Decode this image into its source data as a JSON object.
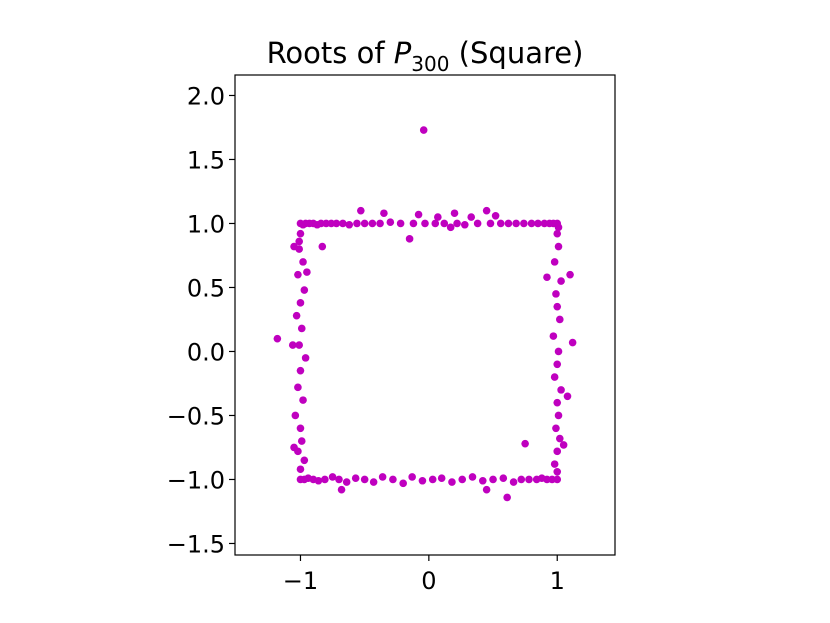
{
  "chart_data": {
    "type": "scatter",
    "title": [
      "Roots of ",
      "P",
      "300",
      " (Square)"
    ],
    "color": "#bf00bf",
    "xlim": [
      -1.51,
      1.45
    ],
    "ylim": [
      -1.59,
      2.16
    ],
    "xticks": [
      {
        "value": -1,
        "label": "−1"
      },
      0,
      1
    ],
    "yticks": [
      {
        "value": -1.5,
        "label": "−1.5"
      },
      {
        "value": -1.0,
        "label": "−1.0"
      },
      {
        "value": -0.5,
        "label": "−0.5"
      },
      {
        "value": 0.0,
        "label": "0.0"
      },
      {
        "value": 0.5,
        "label": "0.5"
      },
      {
        "value": 1.0,
        "label": "1.0"
      },
      {
        "value": 1.5,
        "label": "1.5"
      },
      {
        "value": 2.0,
        "label": "2.0"
      }
    ],
    "x": [
      -1.0,
      -0.98,
      -0.96,
      -0.93,
      -0.9,
      -0.87,
      -0.84,
      -0.8,
      -0.76,
      -0.72,
      -0.67,
      -0.62,
      -0.56,
      -0.5,
      -0.44,
      -0.38,
      -0.3,
      -0.22,
      -0.12,
      -0.03,
      0.05,
      0.12,
      0.22,
      0.28,
      0.38,
      0.48,
      0.56,
      0.62,
      0.68,
      0.74,
      0.8,
      0.85,
      0.9,
      0.94,
      0.97,
      1.0,
      -0.53,
      -0.35,
      -0.15,
      -0.08,
      0.07,
      0.17,
      0.2,
      0.33,
      0.45,
      0.52,
      -1.05,
      -0.83,
      -0.04,
      -1.0,
      -0.97,
      -0.94,
      -0.9,
      -0.86,
      -0.81,
      -0.75,
      -0.7,
      -0.64,
      -0.57,
      -0.5,
      -0.43,
      -0.36,
      -0.28,
      -0.2,
      -0.13,
      -0.05,
      0.03,
      0.1,
      0.18,
      0.26,
      0.34,
      0.42,
      0.5,
      0.58,
      0.66,
      0.72,
      0.78,
      0.84,
      0.88,
      0.92,
      0.96,
      1.0,
      -0.68,
      0.61,
      0.45,
      0.75,
      -1.0,
      -1.01,
      -0.98,
      -1.02,
      -0.97,
      -1.0,
      -1.03,
      -0.99,
      -1.01,
      -0.96,
      -1.0,
      -1.02,
      -0.98,
      -1.04,
      -1.0,
      -0.99,
      -1.02,
      -0.97,
      -1.0,
      -1.01,
      -1.18,
      -1.06,
      -1.05,
      -0.95,
      1.0,
      1.01,
      0.98,
      1.03,
      0.99,
      1.0,
      1.02,
      0.97,
      1.01,
      1.0,
      0.98,
      1.03,
      1.0,
      1.01,
      0.99,
      1.02,
      1.0,
      0.98,
      1.0,
      1.01,
      0.92,
      1.1,
      1.12,
      1.08,
      1.05
    ],
    "y": [
      1.0,
      0.99,
      1.0,
      1.0,
      1.0,
      0.99,
      1.0,
      1.0,
      1.0,
      1.0,
      1.0,
      0.99,
      1.0,
      1.0,
      1.0,
      1.0,
      1.01,
      1.0,
      1.0,
      1.0,
      1.0,
      1.0,
      1.0,
      0.99,
      1.0,
      1.0,
      1.0,
      1.0,
      1.0,
      1.0,
      1.0,
      1.0,
      1.0,
      1.0,
      1.0,
      1.0,
      1.1,
      1.08,
      0.88,
      1.07,
      1.05,
      0.97,
      1.08,
      1.05,
      1.1,
      1.06,
      0.82,
      0.82,
      1.73,
      -1.0,
      -1.0,
      -0.99,
      -1.0,
      -1.01,
      -1.0,
      -0.98,
      -1.0,
      -1.02,
      -0.99,
      -1.0,
      -1.02,
      -0.98,
      -1.0,
      -1.03,
      -0.98,
      -1.01,
      -1.0,
      -0.99,
      -1.02,
      -1.0,
      -0.98,
      -1.01,
      -1.0,
      -0.99,
      -1.02,
      -1.0,
      -1.0,
      -1.0,
      -0.99,
      -1.0,
      -1.0,
      -1.0,
      -1.08,
      -1.14,
      -1.08,
      -0.72,
      0.92,
      0.8,
      0.7,
      0.6,
      0.48,
      0.38,
      0.28,
      0.18,
      0.05,
      -0.05,
      -0.15,
      -0.28,
      -0.38,
      -0.5,
      -0.6,
      -0.7,
      -0.78,
      -0.85,
      -0.92,
      0.86,
      0.1,
      0.05,
      -0.75,
      0.62,
      0.92,
      0.82,
      0.7,
      0.55,
      0.45,
      0.35,
      0.25,
      0.12,
      0.0,
      -0.1,
      -0.2,
      -0.3,
      -0.4,
      -0.5,
      -0.6,
      -0.68,
      -0.78,
      -0.88,
      -0.94,
      0.97,
      0.58,
      0.6,
      0.07,
      -0.35,
      -0.73
    ]
  }
}
